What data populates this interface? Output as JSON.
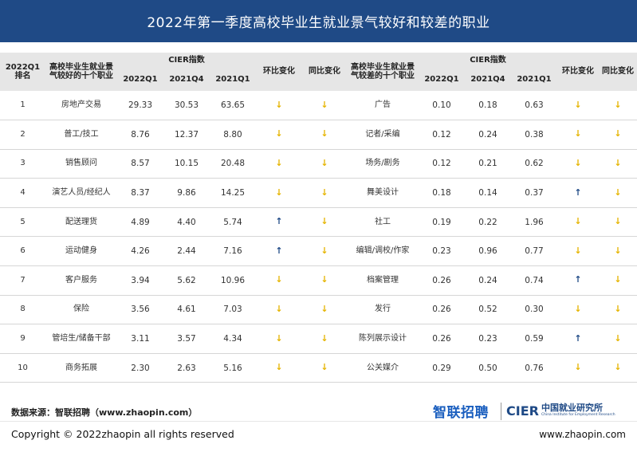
{
  "title": "2022年第一季度高校毕业生就业景气较好和较差的职业",
  "header": {
    "rank": "2022Q1排名",
    "good_jobs": "高校毕业生就业景气较好的十个职业",
    "bad_jobs": "高校毕业生就业景气较差的十个职业",
    "cier_index": "CIER指数",
    "col_2022q1": "2022Q1",
    "col_2021q4": "2021Q4",
    "col_2021q1": "2021Q1",
    "col_mom": "环比变化",
    "col_yoy": "同比变化"
  },
  "rows": [
    {
      "rank": "1",
      "good": "房地产交易",
      "g1": "29.33",
      "g2": "30.53",
      "g3": "63.65",
      "gm": "down",
      "gy": "down",
      "bad": "广告",
      "b1": "0.10",
      "b2": "0.18",
      "b3": "0.63",
      "bm": "down",
      "by": "down"
    },
    {
      "rank": "2",
      "good": "普工/技工",
      "g1": "8.76",
      "g2": "12.37",
      "g3": "8.80",
      "gm": "down",
      "gy": "down",
      "bad": "记者/采编",
      "b1": "0.12",
      "b2": "0.24",
      "b3": "0.38",
      "bm": "down",
      "by": "down"
    },
    {
      "rank": "3",
      "good": "销售顾问",
      "g1": "8.57",
      "g2": "10.15",
      "g3": "20.48",
      "gm": "down",
      "gy": "down",
      "bad": "场务/剧务",
      "b1": "0.12",
      "b2": "0.21",
      "b3": "0.62",
      "bm": "down",
      "by": "down"
    },
    {
      "rank": "4",
      "good": "演艺人员/经纪人",
      "g1": "8.37",
      "g2": "9.86",
      "g3": "14.25",
      "gm": "down",
      "gy": "down",
      "bad": "舞美设计",
      "b1": "0.18",
      "b2": "0.14",
      "b3": "0.37",
      "bm": "up",
      "by": "down"
    },
    {
      "rank": "5",
      "good": "配送理货",
      "g1": "4.89",
      "g2": "4.40",
      "g3": "5.74",
      "gm": "up",
      "gy": "down",
      "bad": "社工",
      "b1": "0.19",
      "b2": "0.22",
      "b3": "1.96",
      "bm": "down",
      "by": "down"
    },
    {
      "rank": "6",
      "good": "运动健身",
      "g1": "4.26",
      "g2": "2.44",
      "g3": "7.16",
      "gm": "up",
      "gy": "down",
      "bad": "编辑/调校/作家",
      "b1": "0.23",
      "b2": "0.96",
      "b3": "0.77",
      "bm": "down",
      "by": "down"
    },
    {
      "rank": "7",
      "good": "客户服务",
      "g1": "3.94",
      "g2": "5.62",
      "g3": "10.96",
      "gm": "down",
      "gy": "down",
      "bad": "档案管理",
      "b1": "0.26",
      "b2": "0.24",
      "b3": "0.74",
      "bm": "up",
      "by": "down"
    },
    {
      "rank": "8",
      "good": "保险",
      "g1": "3.56",
      "g2": "4.61",
      "g3": "7.03",
      "gm": "down",
      "gy": "down",
      "bad": "发行",
      "b1": "0.26",
      "b2": "0.52",
      "b3": "0.30",
      "bm": "down",
      "by": "down"
    },
    {
      "rank": "9",
      "good": "管培生/储备干部",
      "g1": "3.11",
      "g2": "3.57",
      "g3": "4.34",
      "gm": "down",
      "gy": "down",
      "bad": "陈列展示设计",
      "b1": "0.26",
      "b2": "0.23",
      "b3": "0.59",
      "bm": "up",
      "by": "down"
    },
    {
      "rank": "10",
      "good": "商务拓展",
      "g1": "2.30",
      "g2": "2.63",
      "g3": "5.16",
      "gm": "down",
      "gy": "down",
      "bad": "公关媒介",
      "b1": "0.29",
      "b2": "0.50",
      "b3": "0.76",
      "bm": "down",
      "by": "down"
    }
  ],
  "source": "数据来源：智联招聘（www.zhaopin.com）",
  "copyright": "Copyright ©  2022zhaopin all rights reserved",
  "site": "www.zhaopin.com",
  "logos": {
    "zhaopin": "智联招聘",
    "cier": "CIER",
    "cier_cn": "中国就业研究所",
    "cier_en": "China Institute for Employment Research"
  },
  "colors": {
    "title_bg": "#1f4a86",
    "arrow_down": "#e5b400",
    "arrow_up": "#1f4a86",
    "header_bg": "#e6e6e6"
  },
  "icons": {
    "down": "arrow-down-icon",
    "up": "arrow-up-icon"
  }
}
